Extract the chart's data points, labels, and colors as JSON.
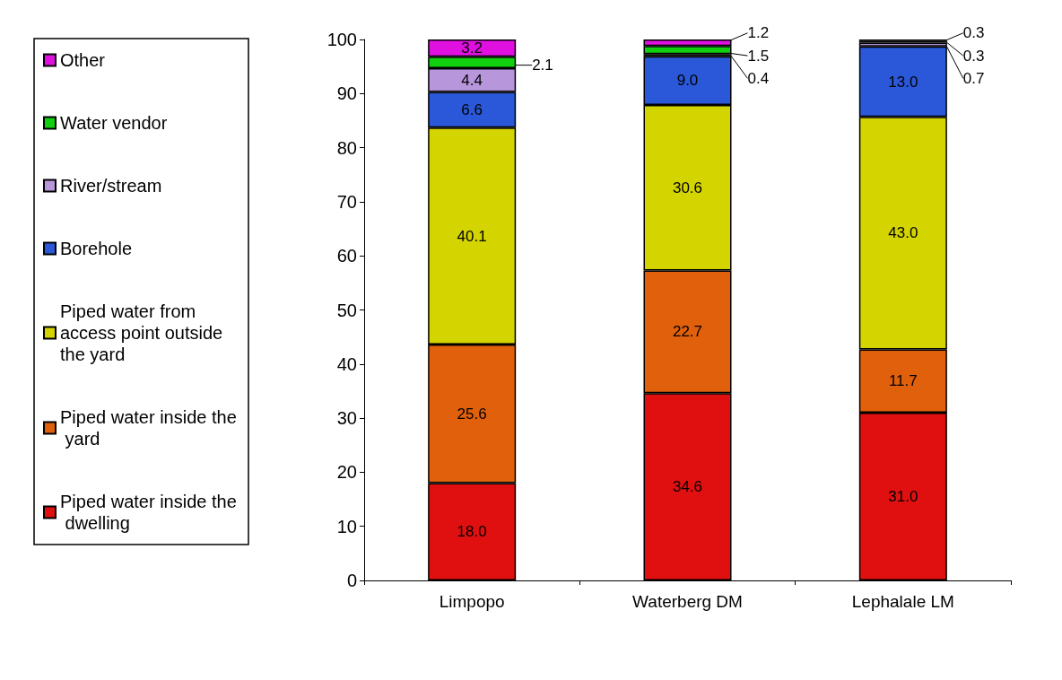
{
  "chart_data": {
    "type": "bar",
    "stacked": true,
    "categories": [
      "Limpopo",
      "Waterberg DM",
      "Lephalale LM"
    ],
    "series": [
      {
        "name": "Piped water inside the dwelling",
        "color": "#e01010",
        "values": [
          18,
          34.6,
          31
        ],
        "value_labels": [
          "18.0",
          "34.6",
          "31.0"
        ]
      },
      {
        "name": "Piped water inside the yard",
        "color": "#e0600c",
        "values": [
          25.6,
          22.7,
          11.7
        ],
        "value_labels": [
          "25.6",
          "22.7",
          "11.7"
        ]
      },
      {
        "name": "Piped water from access point outside the yard",
        "color": "#d4d400",
        "values": [
          40.1,
          30.6,
          43
        ],
        "value_labels": [
          "40.1",
          "30.6",
          "43.0"
        ]
      },
      {
        "name": "Borehole",
        "color": "#2a58d8",
        "values": [
          6.6,
          9,
          13
        ],
        "value_labels": [
          "6.6",
          "9.0",
          "13.0"
        ]
      },
      {
        "name": "River/stream",
        "color": "#b896dc",
        "values": [
          4.4,
          0.4,
          0.7
        ],
        "value_labels": [
          "4.4",
          "0.4",
          "0.7"
        ]
      },
      {
        "name": "Water vendor",
        "color": "#10d010",
        "values": [
          2.1,
          1.5,
          0.3
        ],
        "value_labels": [
          "2.1",
          "1.5",
          "0.3"
        ]
      },
      {
        "name": "Other",
        "color": "#e010e0",
        "values": [
          3.2,
          1.2,
          0.3
        ],
        "value_labels": [
          "3.2",
          "1.2",
          "0.3"
        ]
      }
    ],
    "ylim": [
      0,
      100
    ],
    "yticks": [
      0,
      10,
      20,
      30,
      40,
      50,
      60,
      70,
      80,
      90,
      100
    ],
    "grid": false,
    "legend": "left"
  }
}
